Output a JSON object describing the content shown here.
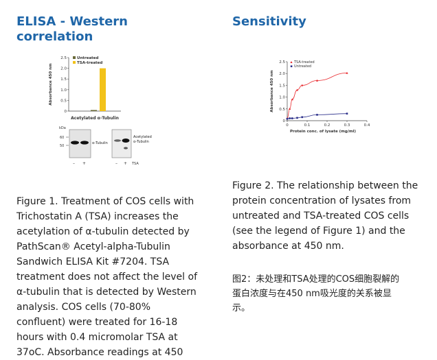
{
  "left": {
    "heading_line1": "ELISA - Western",
    "heading_line2": "correlation",
    "caption_lines": [
      "Figure 1. Treatment of COS cells with",
      "Trichostatin A (TSA) increases the",
      "acetylation of α-tubulin detected by",
      "PathScan® Acetyl-alpha-Tubulin",
      "Sandwich ELISA Kit #7204. TSA",
      "treatment does not affect the level of",
      "α-tubulin that is detected by Western",
      "analysis. COS cells (70-80%",
      "confluent) were treated for 16-18",
      "hours with 0.4 micromolar TSA at",
      "37oC. Absorbance readings at 450"
    ]
  },
  "right": {
    "heading": "Sensitivity",
    "caption_lines": [
      "Figure 2. The relationship between the",
      "protein concentration of lysates from",
      "untreated and TSA-treated COS cells",
      "(see the legend of Figure 1) and the",
      "absorbance at 450 nm."
    ],
    "caption_cn_lines": [
      "图2：未处理和TSA处理的COS细胞裂解的",
      "蛋白浓度与在450 nm吸光度的关系被显",
      "示。"
    ]
  },
  "chart_data": [
    {
      "type": "bar",
      "ylabel": "Absorbance 450 nm",
      "xlabel": "Acetylated α-Tubulin",
      "ylim": [
        0,
        2.5
      ],
      "yticks": [
        "0",
        "0.5",
        "1.0",
        "1.5",
        "2.0",
        "2.5"
      ],
      "categories": [
        "Untreated",
        "TSA-treated"
      ],
      "values": [
        0.05,
        2.0
      ],
      "colors": [
        "#6b6b3a",
        "#f2c21a"
      ]
    },
    {
      "type": "scatter",
      "ylabel": "Absorbance 450 nm",
      "xlabel": "Protein conc. of lysate (mg/ml)",
      "xlim": [
        0,
        0.4
      ],
      "ylim": [
        0,
        2.5
      ],
      "xticks": [
        "0",
        "0.1",
        "0.2",
        "0.3",
        "0.4"
      ],
      "yticks": [
        "0",
        "0.5",
        "1.0",
        "1.5",
        "2.0",
        "2.5"
      ],
      "series": [
        {
          "name": "TSA-treated",
          "color": "#e8262b",
          "x": [
            0.0,
            0.0125,
            0.025,
            0.05,
            0.075,
            0.15,
            0.3
          ],
          "y": [
            0.1,
            0.5,
            0.9,
            1.3,
            1.5,
            1.7,
            2.02
          ]
        },
        {
          "name": "Untreated",
          "color": "#2b2f8a",
          "x": [
            0.0,
            0.0125,
            0.025,
            0.05,
            0.075,
            0.15,
            0.3
          ],
          "y": [
            0.08,
            0.1,
            0.1,
            0.12,
            0.15,
            0.25,
            0.3
          ]
        }
      ]
    }
  ],
  "western": {
    "kda_label": "kDa",
    "markers": [
      "60",
      "50"
    ],
    "blot1_label": "α-Tubulin",
    "blot2_label_line1": "Acetylated",
    "blot2_label_line2": "α-Tubulin",
    "lane_signs": [
      "–",
      "+"
    ],
    "lane_signs2": [
      "–",
      "+"
    ],
    "tsa_label": "TSA"
  }
}
